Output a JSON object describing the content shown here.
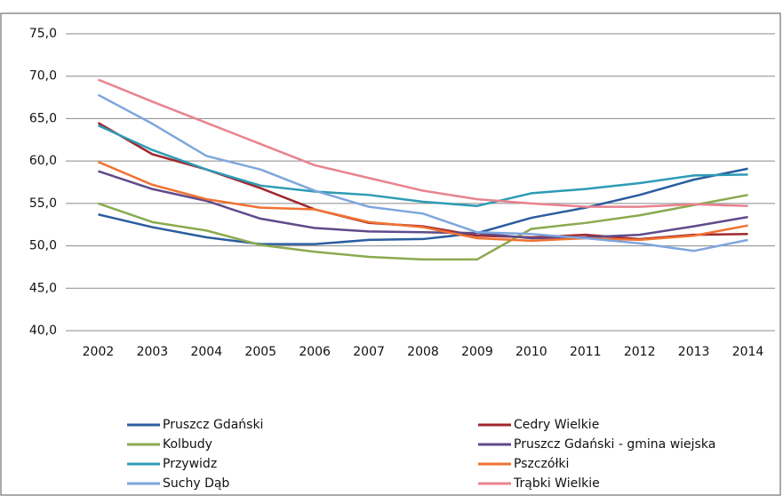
{
  "chart_data": {
    "type": "line",
    "categories": [
      "2002",
      "2003",
      "2004",
      "2005",
      "2006",
      "2007",
      "2008",
      "2009",
      "2010",
      "2011",
      "2012",
      "2013",
      "2014"
    ],
    "series": [
      {
        "name": "Pruszcz Gdański",
        "color": "#2a5d9f",
        "values": [
          53.7,
          52.2,
          51.0,
          50.2,
          50.2,
          50.7,
          50.8,
          51.5,
          53.3,
          54.5,
          56.0,
          57.8,
          59.1
        ]
      },
      {
        "name": "Cedry Wielkie",
        "color": "#a0272d",
        "values": [
          64.5,
          60.8,
          59.0,
          56.8,
          54.3,
          52.7,
          52.3,
          51.2,
          51.0,
          51.3,
          50.8,
          51.3,
          51.4
        ]
      },
      {
        "name": "Kolbudy",
        "color": "#8aaa4f",
        "values": [
          55.0,
          52.8,
          51.8,
          50.1,
          49.3,
          48.7,
          48.4,
          48.4,
          52.0,
          52.7,
          53.6,
          54.8,
          56.0
        ]
      },
      {
        "name": "Pruszcz Gdański - gmina wiejska",
        "color": "#5f4a8b",
        "values": [
          58.8,
          56.7,
          55.3,
          53.2,
          52.1,
          51.7,
          51.6,
          51.5,
          50.9,
          51.0,
          51.3,
          52.3,
          53.4
        ]
      },
      {
        "name": "Przywidz",
        "color": "#2d9bb5",
        "values": [
          64.2,
          61.3,
          59.0,
          57.1,
          56.4,
          56.0,
          55.2,
          54.7,
          56.2,
          56.7,
          57.4,
          58.3,
          58.4
        ]
      },
      {
        "name": "Pszczółki",
        "color": "#f07230",
        "values": [
          59.9,
          57.2,
          55.5,
          54.5,
          54.3,
          52.8,
          52.2,
          50.9,
          50.6,
          50.9,
          50.7,
          51.2,
          52.4
        ]
      },
      {
        "name": "Suchy Dąb",
        "color": "#7fa6dd",
        "values": [
          67.8,
          64.4,
          60.6,
          59.0,
          56.5,
          54.6,
          53.8,
          51.6,
          51.4,
          50.9,
          50.3,
          49.4,
          50.7
        ]
      },
      {
        "name": "Trąbki Wielkie",
        "color": "#e8838f",
        "values": [
          69.6,
          67.0,
          64.5,
          62.0,
          59.5,
          58.0,
          56.5,
          55.5,
          55.0,
          54.6,
          54.6,
          54.9,
          54.7
        ]
      }
    ],
    "ylim": [
      40,
      75
    ],
    "yticks": [
      {
        "value": 40,
        "label": "40,0"
      },
      {
        "value": 45,
        "label": "45,0"
      },
      {
        "value": 50,
        "label": "50,0"
      },
      {
        "value": 55,
        "label": "55,0"
      },
      {
        "value": 60,
        "label": "60,0"
      },
      {
        "value": 65,
        "label": "65,0"
      },
      {
        "value": 70,
        "label": "70,0"
      },
      {
        "value": 75,
        "label": "75,0"
      }
    ],
    "grid": true,
    "legend": "bottom"
  }
}
